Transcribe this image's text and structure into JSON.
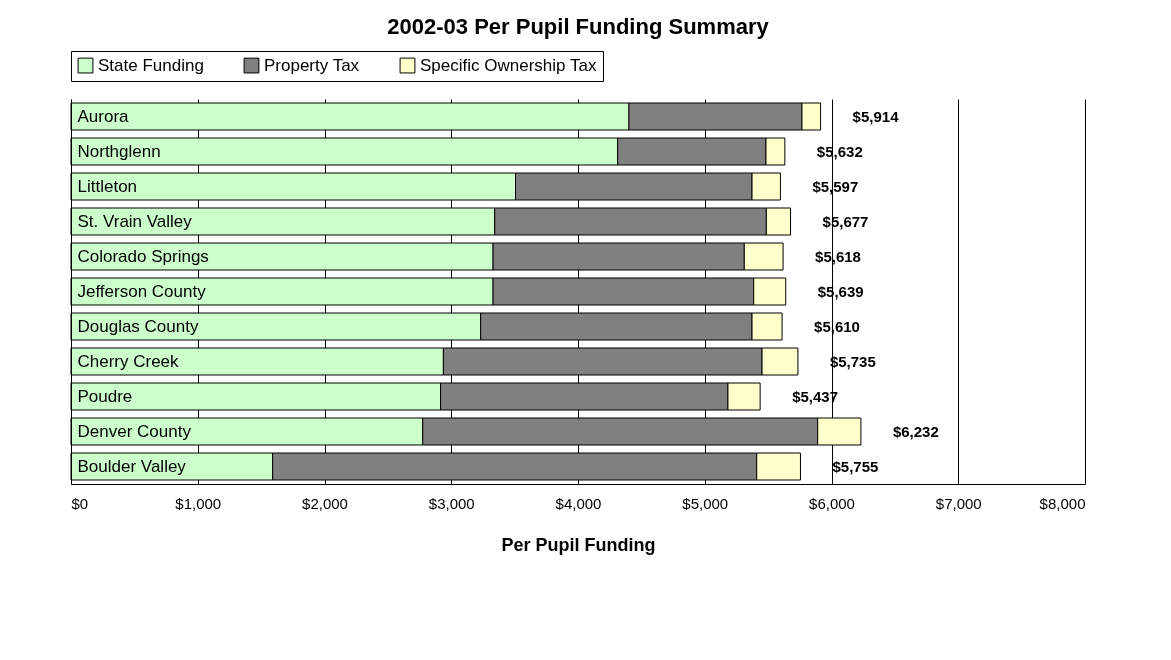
{
  "chart_data": {
    "type": "bar",
    "orientation": "horizontal",
    "stacked": true,
    "title": "2002-03 Per Pupil Funding Summary",
    "xlabel": "Per Pupil Funding",
    "categories": [
      "Aurora",
      "Northglenn",
      "Littleton",
      "St. Vrain Valley",
      "Colorado Springs",
      "Jefferson County",
      "Douglas County",
      "Cherry Creek",
      "Poudre",
      "Denver County",
      "Boulder Valley"
    ],
    "series": [
      {
        "name": "State Funding",
        "color": "#ccffcc",
        "values": [
          4402,
          4313,
          3507,
          3343,
          3330,
          3330,
          3232,
          2938,
          2916,
          2775,
          1591
        ]
      },
      {
        "name": "Property Tax",
        "color": "#808080",
        "values": [
          1365,
          1170,
          1866,
          2143,
          1982,
          2056,
          2141,
          2514,
          2267,
          3116,
          3819
        ]
      },
      {
        "name": "Specific Ownership Tax",
        "color": "#ffffcc",
        "values": [
          147,
          149,
          224,
          191,
          306,
          253,
          237,
          283,
          254,
          341,
          345
        ]
      }
    ],
    "totals": [
      "$5,914",
      "$5,632",
      "$5,597",
      "$5,677",
      "$5,618",
      "$5,639",
      "$5,610",
      "$5,735",
      "$5,437",
      "$6,232",
      "$5,755"
    ],
    "xlim": [
      0,
      8000
    ],
    "xticks": [
      {
        "value": 0,
        "label": "$0"
      },
      {
        "value": 1000,
        "label": "$1,000"
      },
      {
        "value": 2000,
        "label": "$2,000"
      },
      {
        "value": 3000,
        "label": "$3,000"
      },
      {
        "value": 4000,
        "label": "$4,000"
      },
      {
        "value": 5000,
        "label": "$5,000"
      },
      {
        "value": 6000,
        "label": "$6,000"
      },
      {
        "value": 7000,
        "label": "$7,000"
      },
      {
        "value": 8000,
        "label": "$8,000"
      }
    ],
    "grid": "x",
    "legend": "top"
  }
}
